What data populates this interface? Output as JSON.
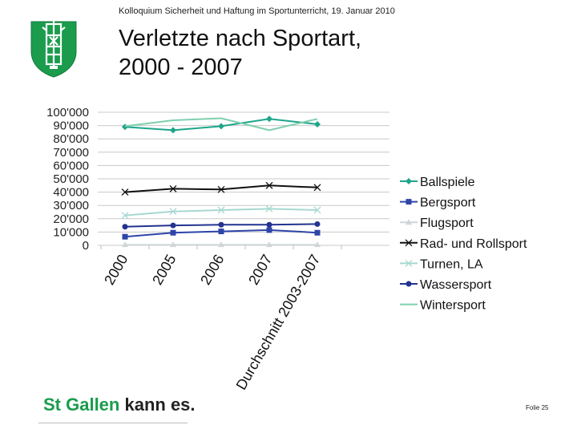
{
  "header": {
    "subtitle": "Kolloquium Sicherheit und Haftung im Sportunterricht, 19. Januar 2010",
    "title_line1": "Verletzte nach Sportart,",
    "title_line2": "2000 - 2007"
  },
  "crest": {
    "icon": "st-gallen-coat-of-arms",
    "color": "#1a9c4c"
  },
  "chart_data": {
    "type": "line",
    "categories": [
      "2000",
      "2005",
      "2006",
      "2007",
      "Durchschnitt 2003-2007"
    ],
    "y_tick_labels": [
      "0",
      "10'000",
      "20'000",
      "30'000",
      "40'000",
      "50'000",
      "60'000",
      "70'000",
      "80'000",
      "90'000",
      "100'000"
    ],
    "ylim": [
      0,
      100000
    ],
    "grid": true,
    "legend_position": "right",
    "series": [
      {
        "name": "Ballspiele",
        "values": [
          89000,
          86500,
          89500,
          95000,
          91000
        ],
        "color": "#1ea58a",
        "marker": "diamond"
      },
      {
        "name": "Bergsport",
        "values": [
          6500,
          9500,
          10500,
          11500,
          9500
        ],
        "color": "#2e45a8",
        "marker": "square"
      },
      {
        "name": "Flugsport",
        "values": [
          500,
          500,
          500,
          500,
          500
        ],
        "color": "#cfd6d8",
        "marker": "triangle"
      },
      {
        "name": "Rad- und Rollsport",
        "values": [
          40000,
          42500,
          42000,
          45000,
          43500
        ],
        "color": "#111111",
        "marker": "x"
      },
      {
        "name": "Turnen, LA",
        "values": [
          22500,
          25500,
          26500,
          27500,
          26500
        ],
        "color": "#a8d8d2",
        "marker": "x"
      },
      {
        "name": "Wassersport",
        "values": [
          14000,
          15000,
          15500,
          15500,
          16000
        ],
        "color": "#23338f",
        "marker": "circle"
      },
      {
        "name": "Wintersport",
        "values": [
          89500,
          94000,
          95500,
          86500,
          95000
        ],
        "color": "#7ecfae",
        "marker": "none"
      }
    ]
  },
  "footer": {
    "logo_part1": "St Gallen",
    "logo_part2": "kann es.",
    "slide_number": "Folie 25"
  }
}
